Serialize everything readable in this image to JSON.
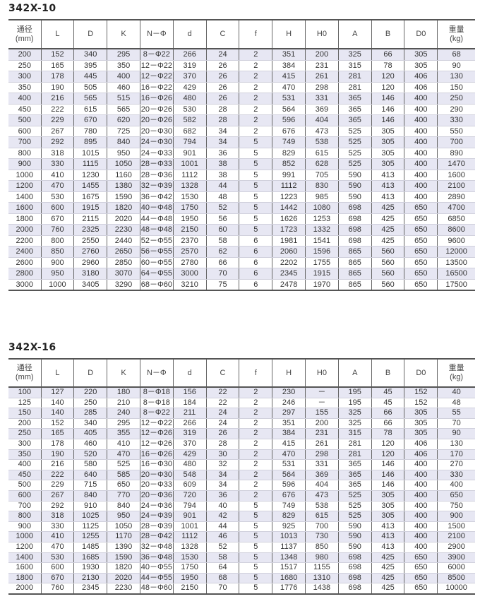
{
  "headers": [
    {
      "line1": "通径",
      "line2": "(mm)"
    },
    {
      "line1": "L"
    },
    {
      "line1": "D"
    },
    {
      "line1": "K"
    },
    {
      "line1": "N－Φ"
    },
    {
      "line1": "d"
    },
    {
      "line1": "C"
    },
    {
      "line1": "f"
    },
    {
      "line1": "H"
    },
    {
      "line1": "H0"
    },
    {
      "line1": "A"
    },
    {
      "line1": "B"
    },
    {
      "line1": "D0"
    },
    {
      "line1": "重量",
      "line2": "(kg)"
    }
  ],
  "tables": [
    {
      "title": "342X-10",
      "rows": [
        [
          "200",
          "152",
          "340",
          "295",
          "8－Φ22",
          "266",
          "24",
          "2",
          "351",
          "200",
          "325",
          "66",
          "305",
          "68"
        ],
        [
          "250",
          "165",
          "395",
          "350",
          "12－Φ22",
          "319",
          "26",
          "2",
          "384",
          "231",
          "315",
          "78",
          "305",
          "90"
        ],
        [
          "300",
          "178",
          "445",
          "400",
          "12－Φ22",
          "370",
          "26",
          "2",
          "415",
          "261",
          "281",
          "120",
          "406",
          "130"
        ],
        [
          "350",
          "190",
          "505",
          "460",
          "16－Φ22",
          "429",
          "26",
          "2",
          "470",
          "298",
          "281",
          "120",
          "406",
          "150"
        ],
        [
          "400",
          "216",
          "565",
          "515",
          "16－Φ26",
          "480",
          "26",
          "2",
          "531",
          "331",
          "365",
          "146",
          "400",
          "250"
        ],
        [
          "450",
          "222",
          "615",
          "565",
          "20－Φ26",
          "530",
          "28",
          "2",
          "564",
          "369",
          "365",
          "146",
          "400",
          "290"
        ],
        [
          "500",
          "229",
          "670",
          "620",
          "20－Φ26",
          "582",
          "28",
          "2",
          "596",
          "404",
          "365",
          "146",
          "400",
          "330"
        ],
        [
          "600",
          "267",
          "780",
          "725",
          "20－Φ30",
          "682",
          "34",
          "2",
          "676",
          "473",
          "525",
          "305",
          "400",
          "550"
        ],
        [
          "700",
          "292",
          "895",
          "840",
          "24－Φ30",
          "794",
          "34",
          "5",
          "749",
          "538",
          "525",
          "305",
          "400",
          "700"
        ],
        [
          "800",
          "318",
          "1015",
          "950",
          "24－Φ33",
          "901",
          "36",
          "5",
          "829",
          "615",
          "525",
          "305",
          "400",
          "890"
        ],
        [
          "900",
          "330",
          "1115",
          "1050",
          "28－Φ33",
          "1001",
          "38",
          "5",
          "852",
          "628",
          "525",
          "305",
          "400",
          "1470"
        ],
        [
          "1000",
          "410",
          "1230",
          "1160",
          "28－Φ36",
          "1112",
          "38",
          "5",
          "991",
          "705",
          "590",
          "413",
          "400",
          "1600"
        ],
        [
          "1200",
          "470",
          "1455",
          "1380",
          "32－Φ39",
          "1328",
          "44",
          "5",
          "1112",
          "830",
          "590",
          "413",
          "400",
          "2100"
        ],
        [
          "1400",
          "530",
          "1675",
          "1590",
          "36－Φ42",
          "1530",
          "48",
          "5",
          "1223",
          "985",
          "590",
          "413",
          "400",
          "2890"
        ],
        [
          "1600",
          "600",
          "1915",
          "1820",
          "40－Φ48",
          "1750",
          "52",
          "5",
          "1442",
          "1080",
          "698",
          "425",
          "650",
          "4700"
        ],
        [
          "1800",
          "670",
          "2115",
          "2020",
          "44－Φ48",
          "1950",
          "56",
          "5",
          "1626",
          "1253",
          "698",
          "425",
          "650",
          "6850"
        ],
        [
          "2000",
          "760",
          "2325",
          "2230",
          "48－Φ48",
          "2150",
          "60",
          "5",
          "1723",
          "1332",
          "698",
          "425",
          "650",
          "8600"
        ],
        [
          "2200",
          "800",
          "2550",
          "2440",
          "52－Φ55",
          "2370",
          "58",
          "6",
          "1981",
          "1541",
          "698",
          "425",
          "650",
          "9600"
        ],
        [
          "2400",
          "850",
          "2760",
          "2650",
          "56－Φ55",
          "2570",
          "62",
          "6",
          "2060",
          "1596",
          "865",
          "560",
          "650",
          "12000"
        ],
        [
          "2600",
          "900",
          "2960",
          "2850",
          "60－Φ55",
          "2780",
          "66",
          "6",
          "2202",
          "1755",
          "865",
          "560",
          "650",
          "13500"
        ],
        [
          "2800",
          "950",
          "3180",
          "3070",
          "64－Φ55",
          "3000",
          "70",
          "6",
          "2345",
          "1915",
          "865",
          "560",
          "650",
          "16500"
        ],
        [
          "3000",
          "1000",
          "3405",
          "3290",
          "68－Φ60",
          "3210",
          "75",
          "6",
          "2478",
          "1970",
          "865",
          "560",
          "650",
          "17500"
        ]
      ]
    },
    {
      "title": "342X-16",
      "rows": [
        [
          "100",
          "127",
          "220",
          "180",
          "8－Φ18",
          "156",
          "22",
          "2",
          "230",
          "－",
          "195",
          "45",
          "152",
          "40"
        ],
        [
          "125",
          "140",
          "250",
          "210",
          "8－Φ18",
          "184",
          "22",
          "2",
          "246",
          "－",
          "195",
          "45",
          "152",
          "48"
        ],
        [
          "150",
          "140",
          "285",
          "240",
          "8－Φ22",
          "211",
          "24",
          "2",
          "297",
          "155",
          "325",
          "66",
          "305",
          "55"
        ],
        [
          "200",
          "152",
          "340",
          "295",
          "12－Φ22",
          "266",
          "24",
          "2",
          "351",
          "200",
          "325",
          "66",
          "305",
          "70"
        ],
        [
          "250",
          "165",
          "405",
          "355",
          "12－Φ26",
          "319",
          "26",
          "2",
          "384",
          "231",
          "315",
          "78",
          "305",
          "90"
        ],
        [
          "300",
          "178",
          "460",
          "410",
          "12－Φ26",
          "370",
          "28",
          "2",
          "415",
          "261",
          "281",
          "120",
          "406",
          "130"
        ],
        [
          "350",
          "190",
          "520",
          "470",
          "16－Φ26",
          "429",
          "30",
          "2",
          "470",
          "298",
          "281",
          "120",
          "406",
          "170"
        ],
        [
          "400",
          "216",
          "580",
          "525",
          "16－Φ30",
          "480",
          "32",
          "2",
          "531",
          "331",
          "365",
          "146",
          "400",
          "270"
        ],
        [
          "450",
          "222",
          "640",
          "585",
          "20－Φ30",
          "548",
          "34",
          "2",
          "564",
          "369",
          "365",
          "146",
          "400",
          "330"
        ],
        [
          "500",
          "229",
          "715",
          "650",
          "20－Φ33",
          "609",
          "34",
          "2",
          "596",
          "404",
          "365",
          "146",
          "400",
          "400"
        ],
        [
          "600",
          "267",
          "840",
          "770",
          "20－Φ36",
          "720",
          "36",
          "2",
          "676",
          "473",
          "525",
          "305",
          "400",
          "650"
        ],
        [
          "700",
          "292",
          "910",
          "840",
          "24－Φ36",
          "794",
          "40",
          "5",
          "749",
          "538",
          "525",
          "305",
          "400",
          "750"
        ],
        [
          "800",
          "318",
          "1025",
          "950",
          "24－Φ39",
          "901",
          "42",
          "5",
          "829",
          "615",
          "525",
          "305",
          "400",
          "900"
        ],
        [
          "900",
          "330",
          "1125",
          "1050",
          "28－Φ39",
          "1001",
          "44",
          "5",
          "925",
          "700",
          "590",
          "413",
          "400",
          "1500"
        ],
        [
          "1000",
          "410",
          "1255",
          "1170",
          "28－Φ42",
          "1112",
          "46",
          "5",
          "1013",
          "730",
          "590",
          "413",
          "400",
          "2100"
        ],
        [
          "1200",
          "470",
          "1485",
          "1390",
          "32－Φ48",
          "1328",
          "52",
          "5",
          "1137",
          "850",
          "590",
          "413",
          "400",
          "2900"
        ],
        [
          "1400",
          "530",
          "1685",
          "1590",
          "36－Φ48",
          "1530",
          "58",
          "5",
          "1348",
          "980",
          "698",
          "425",
          "650",
          "3900"
        ],
        [
          "1600",
          "600",
          "1930",
          "1820",
          "40－Φ55",
          "1750",
          "64",
          "5",
          "1517",
          "1155",
          "698",
          "425",
          "650",
          "6000"
        ],
        [
          "1800",
          "670",
          "2130",
          "2020",
          "44－Φ55",
          "1950",
          "68",
          "5",
          "1680",
          "1310",
          "698",
          "425",
          "650",
          "8500"
        ],
        [
          "2000",
          "760",
          "2345",
          "2230",
          "48－Φ60",
          "2150",
          "70",
          "5",
          "1776",
          "1438",
          "698",
          "425",
          "650",
          "10000"
        ]
      ]
    }
  ],
  "colors": {
    "row_shade": "#e7e7f3",
    "rule": "#555555"
  }
}
